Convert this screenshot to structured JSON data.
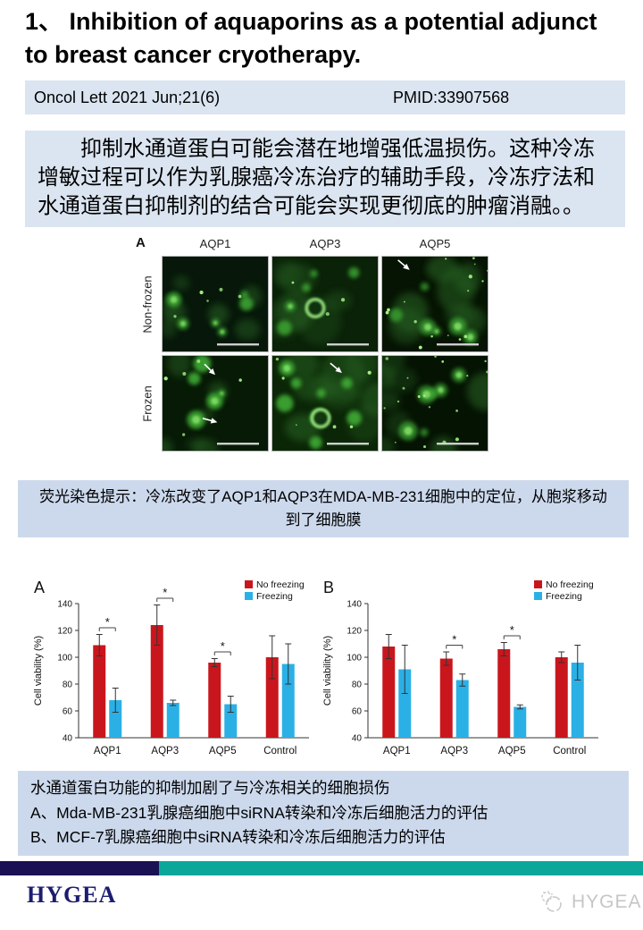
{
  "slide": {
    "title": "1、 Inhibition of aquaporins as a potential adjunct to breast cancer cryotherapy.",
    "journal": "Oncol Lett 2021 Jun;21(6)",
    "pmid": "PMID:33907568",
    "abstract": "抑制水通道蛋白可能会潜在地增强低温损伤。这种冷冻增敏过程可以作为乳腺癌冷冻治疗的辅助手段，冷冻疗法和水通道蛋白抑制剂的结合可能会实现更彻底的肿瘤消融。。"
  },
  "figure": {
    "panel_label": "A",
    "columns": [
      "AQP1",
      "AQP3",
      "AQP5"
    ],
    "rows": [
      "Non-frozen",
      "Frozen"
    ],
    "arrows": [
      {
        "panel": "Non-frozen AQP5",
        "count": 1
      },
      {
        "panel": "Frozen AQP1",
        "count": 2
      },
      {
        "panel": "Frozen AQP3",
        "count": 1
      }
    ],
    "scale_bars": true
  },
  "captions": {
    "fluorescence": "荧光染色提示：冷冻改变了AQP1和AQP3在MDA-MB-231细胞中的定位，从胞浆移动到了细胞膜",
    "bottom_lines": [
      "水通道蛋白功能的抑制加剧了与冷冻相关的细胞损伤",
      "A、Mda-MB-231乳腺癌细胞中siRNA转染和冷冻后细胞活力的评估",
      "B、MCF-7乳腺癌细胞中siRNA转染和冷冻后细胞活力的评估"
    ]
  },
  "chart_data": [
    {
      "type": "bar",
      "panel": "A",
      "categories": [
        "AQP1",
        "AQP3",
        "AQP5",
        "Control"
      ],
      "series": [
        {
          "name": "No freezing",
          "color": "#c9161d",
          "values": [
            109,
            124,
            96,
            100
          ],
          "errors": [
            8,
            15,
            3,
            16
          ]
        },
        {
          "name": "Freezing",
          "color": "#2bb0e6",
          "values": [
            68,
            66,
            65,
            95
          ],
          "errors": [
            9,
            2,
            6,
            15
          ]
        }
      ],
      "significance": [
        true,
        true,
        true,
        false
      ],
      "ylabel": "Cell viability (%)",
      "ylim": [
        40,
        140
      ],
      "yticks": [
        40,
        60,
        80,
        100,
        120,
        140
      ],
      "legend_position": "top-right"
    },
    {
      "type": "bar",
      "panel": "B",
      "categories": [
        "AQP1",
        "AQP3",
        "AQP5",
        "Control"
      ],
      "series": [
        {
          "name": "No freezing",
          "color": "#c9161d",
          "values": [
            108,
            99,
            106,
            100
          ],
          "errors": [
            9,
            5,
            5,
            4
          ]
        },
        {
          "name": "Freezing",
          "color": "#2bb0e6",
          "values": [
            91,
            83,
            63,
            96
          ],
          "errors": [
            18,
            4.5,
            1.5,
            13
          ]
        }
      ],
      "significance": [
        false,
        true,
        true,
        false
      ],
      "ylabel": "Cell viability (%)",
      "ylim": [
        40,
        140
      ],
      "yticks": [
        40,
        60,
        80,
        100,
        120,
        140
      ],
      "legend_position": "top-right"
    }
  ],
  "footer": {
    "brand": "HYGEA",
    "watermark": "HYGEA",
    "bar_colors": {
      "navy": "#191153",
      "teal": "#0ba79b"
    }
  }
}
